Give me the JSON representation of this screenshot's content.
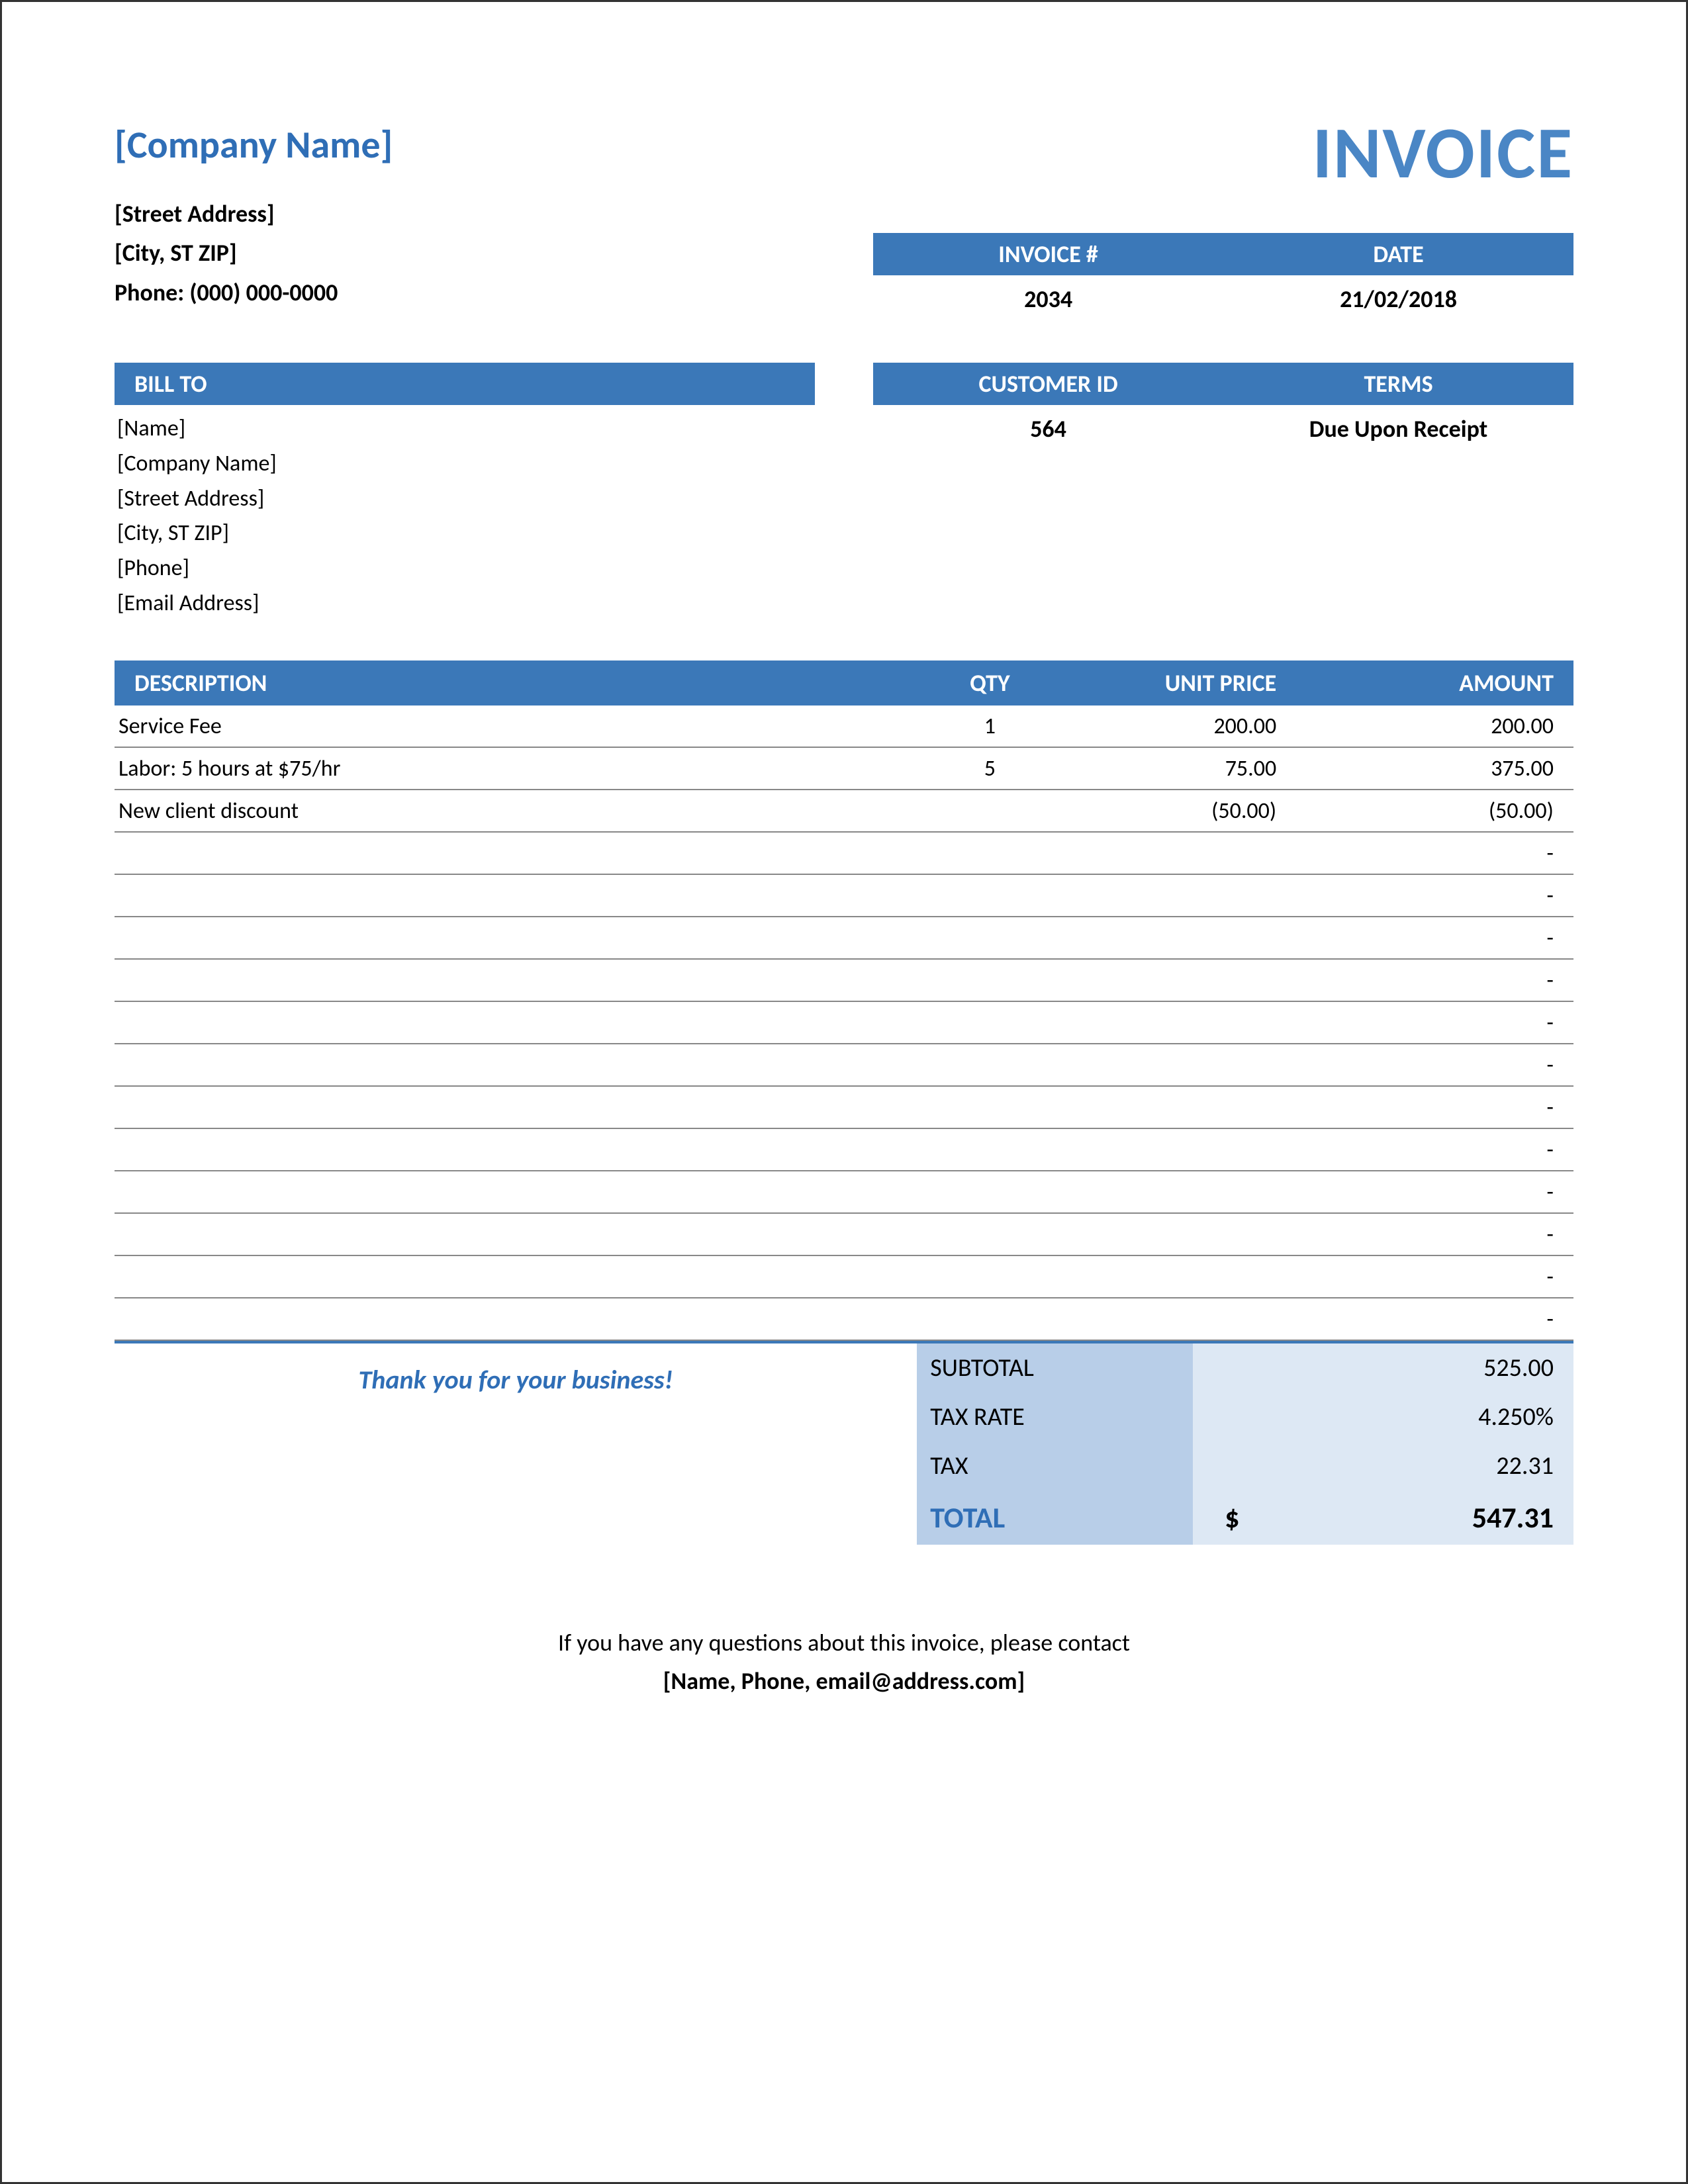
{
  "header": {
    "company_name": "[Company Name]",
    "street": "[Street Address]",
    "city_line": "[City, ST  ZIP]",
    "phone_label": "Phone: (000) 000-0000",
    "invoice_title": "INVOICE"
  },
  "meta": {
    "invoice_number_label": "INVOICE #",
    "date_label": "DATE",
    "invoice_number": "2034",
    "date": "21/02/2018"
  },
  "billto": {
    "header": "BILL TO",
    "name": "[Name]",
    "company": "[Company Name]",
    "street": "[Street Address]",
    "city_line": "[City, ST  ZIP]",
    "phone": "[Phone]",
    "email": "[Email Address]"
  },
  "customer": {
    "id_label": "CUSTOMER ID",
    "terms_label": "TERMS",
    "id": "564",
    "terms": "Due Upon Receipt"
  },
  "items": {
    "columns": {
      "description": "DESCRIPTION",
      "qty": "QTY",
      "unit_price": "UNIT PRICE",
      "amount": "AMOUNT"
    },
    "rows": [
      {
        "description": "Service Fee",
        "qty": "1",
        "unit_price": "200.00",
        "amount": "200.00"
      },
      {
        "description": "Labor: 5 hours at $75/hr",
        "qty": "5",
        "unit_price": "75.00",
        "amount": "375.00"
      },
      {
        "description": "New client discount",
        "qty": "",
        "unit_price": "(50.00)",
        "amount": "(50.00)"
      },
      {
        "description": "",
        "qty": "",
        "unit_price": "",
        "amount": "-"
      },
      {
        "description": "",
        "qty": "",
        "unit_price": "",
        "amount": "-"
      },
      {
        "description": "",
        "qty": "",
        "unit_price": "",
        "amount": "-"
      },
      {
        "description": "",
        "qty": "",
        "unit_price": "",
        "amount": "-"
      },
      {
        "description": "",
        "qty": "",
        "unit_price": "",
        "amount": "-"
      },
      {
        "description": "",
        "qty": "",
        "unit_price": "",
        "amount": "-"
      },
      {
        "description": "",
        "qty": "",
        "unit_price": "",
        "amount": "-"
      },
      {
        "description": "",
        "qty": "",
        "unit_price": "",
        "amount": "-"
      },
      {
        "description": "",
        "qty": "",
        "unit_price": "",
        "amount": "-"
      },
      {
        "description": "",
        "qty": "",
        "unit_price": "",
        "amount": "-"
      },
      {
        "description": "",
        "qty": "",
        "unit_price": "",
        "amount": "-"
      },
      {
        "description": "",
        "qty": "",
        "unit_price": "",
        "amount": "-"
      }
    ]
  },
  "thanks": "Thank you for your business!",
  "summary": {
    "subtotal_label": "SUBTOTAL",
    "subtotal": "525.00",
    "taxrate_label": "TAX RATE",
    "taxrate": "4.250%",
    "tax_label": "TAX",
    "tax": "22.31",
    "total_label": "TOTAL",
    "currency": "$",
    "total": "547.31"
  },
  "footer": {
    "line1": "If you have any questions about this invoice, please contact",
    "line2": "[Name, Phone, email@address.com]"
  },
  "colors": {
    "accent": "#3b78b8",
    "accent_text": "#2f6eb6",
    "summary_light": "#dde8f4",
    "summary_mid": "#b8cee8"
  }
}
